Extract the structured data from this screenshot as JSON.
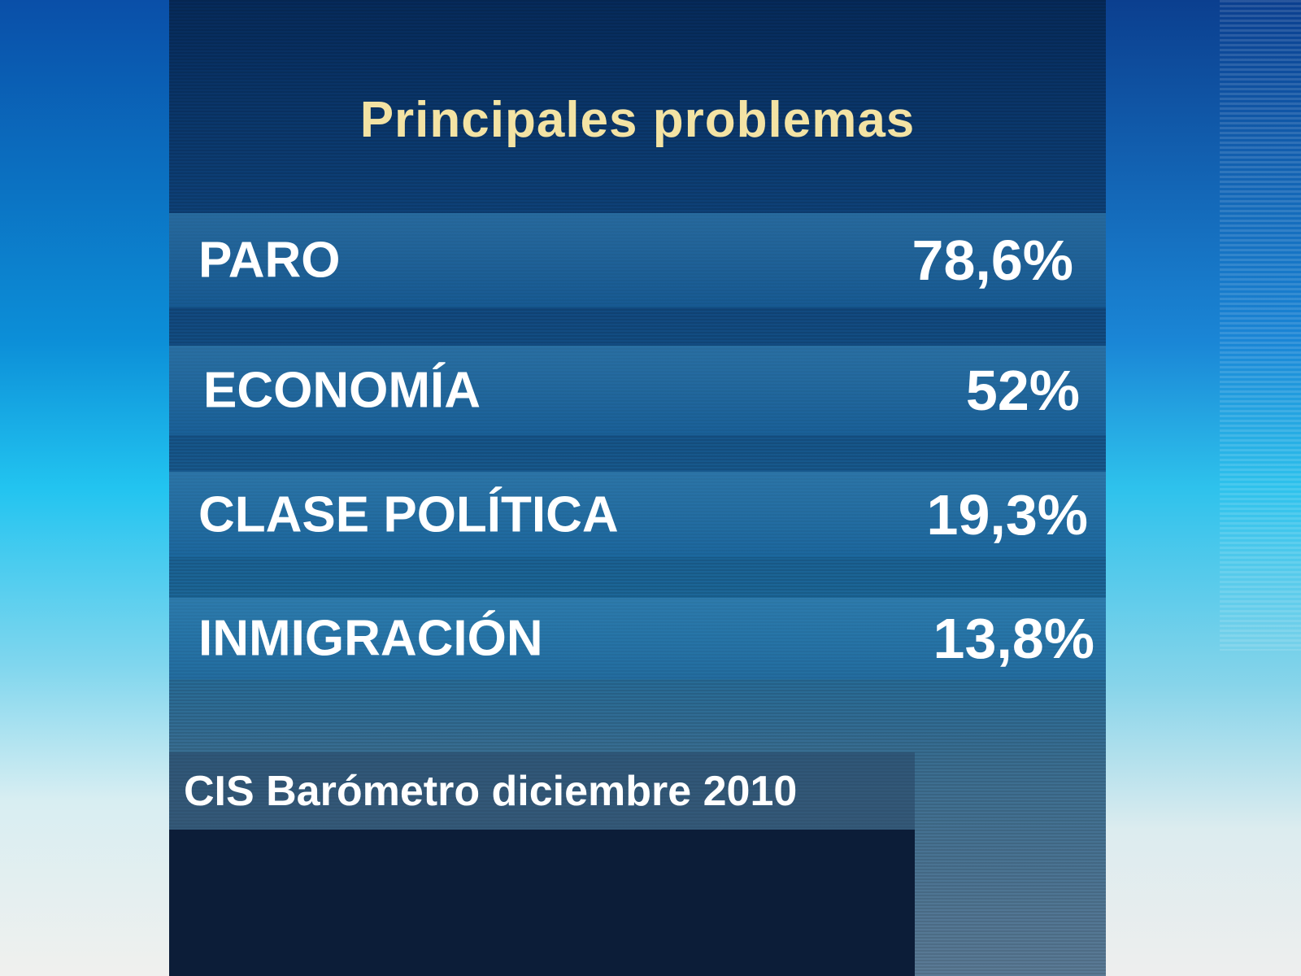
{
  "chart_data": {
    "type": "table",
    "title": "Principales problemas",
    "rows": [
      {
        "label": "PARO",
        "value": "78,6%"
      },
      {
        "label": "ECONOMÍA",
        "value": "52%"
      },
      {
        "label": "CLASE POLÍTICA",
        "value": "19,3%"
      },
      {
        "label": "INMIGRACIÓN",
        "value": "13,8%"
      }
    ],
    "source": "CIS Barómetro diciembre 2010"
  },
  "colors": {
    "title": "#f3e3a4",
    "panel": "#0d3f76",
    "text": "#ffffff"
  }
}
